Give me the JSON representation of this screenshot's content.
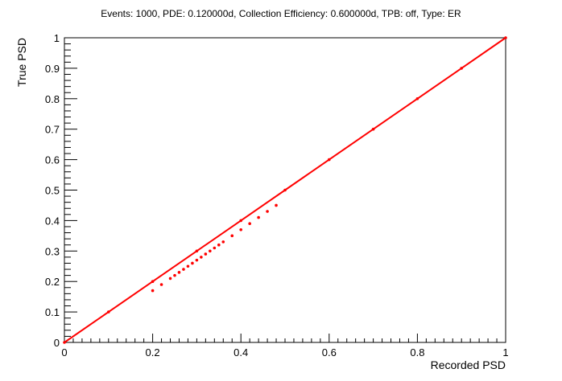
{
  "chart_data": {
    "type": "scatter",
    "title": "Events: 1000, PDE: 0.120000d, Collection Efficiency: 0.600000d, TPB: off, Type: ER",
    "xlabel": "Recorded PSD",
    "ylabel": "True PSD",
    "xlim": [
      0,
      1
    ],
    "ylim": [
      0,
      1
    ],
    "grid": false,
    "x_ticks": [
      "0",
      "0.2",
      "0.4",
      "0.6",
      "0.8",
      "1"
    ],
    "y_ticks": [
      "0",
      "0.1",
      "0.2",
      "0.3",
      "0.4",
      "0.5",
      "0.6",
      "0.7",
      "0.8",
      "0.9",
      "1"
    ],
    "marker_color": "#ff0000",
    "series": [
      {
        "x": [
          0,
          0.1,
          0.2,
          0.3,
          0.4,
          0.5,
          0.6,
          0.7,
          0.8,
          0.9,
          1.0
        ],
        "y": [
          0,
          0.1,
          0.2,
          0.3,
          0.4,
          0.5,
          0.6,
          0.7,
          0.8,
          0.9,
          1.0
        ]
      },
      {
        "x": [
          0.2,
          0.22,
          0.24,
          0.25,
          0.26,
          0.27,
          0.28,
          0.29,
          0.3,
          0.31,
          0.32,
          0.33,
          0.34,
          0.35,
          0.36,
          0.38,
          0.4,
          0.42,
          0.44,
          0.46,
          0.48
        ],
        "y": [
          0.17,
          0.19,
          0.21,
          0.22,
          0.23,
          0.24,
          0.25,
          0.26,
          0.27,
          0.28,
          0.29,
          0.3,
          0.31,
          0.32,
          0.33,
          0.35,
          0.37,
          0.39,
          0.41,
          0.43,
          0.45
        ]
      }
    ]
  }
}
